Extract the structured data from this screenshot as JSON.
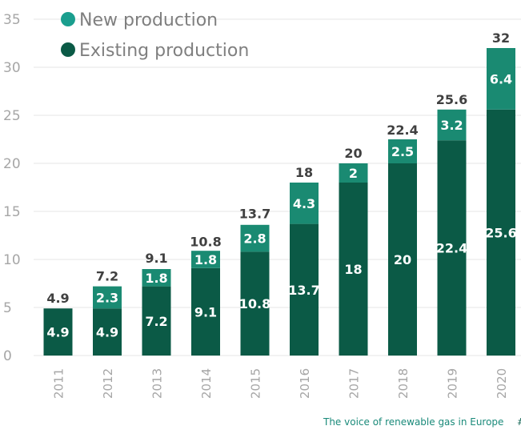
{
  "chart_data": {
    "type": "bar",
    "stacked": true,
    "categories": [
      "2011",
      "2012",
      "2013",
      "2014",
      "2015",
      "2016",
      "2017",
      "2018",
      "2019",
      "2020"
    ],
    "series": [
      {
        "name": "Existing production",
        "values": [
          4.9,
          4.9,
          7.2,
          9.1,
          10.8,
          13.7,
          18,
          20,
          22.4,
          25.6
        ]
      },
      {
        "name": "New production",
        "values": [
          0,
          2.3,
          1.8,
          1.8,
          2.8,
          4.3,
          2,
          2.5,
          3.2,
          6.4
        ]
      }
    ],
    "totals": [
      4.9,
      7.2,
      9.1,
      10.8,
      13.7,
      18,
      20,
      22.4,
      25.6,
      32
    ],
    "ylim": [
      0,
      35
    ],
    "yticks": [
      0,
      5,
      10,
      15,
      20,
      25,
      30,
      35
    ],
    "grid": true,
    "legend_position": "top-left",
    "colors": {
      "existing": "#0b5a46",
      "new": "#1a8a72",
      "legend_new": "#1a9e8e",
      "legend_existing": "#0b5a46"
    }
  },
  "footer": {
    "text": "The voice of renewable gas in Europe",
    "mark": "#"
  }
}
